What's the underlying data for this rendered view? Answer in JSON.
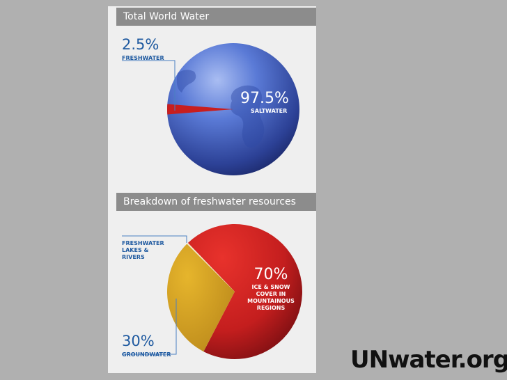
{
  "colors": {
    "background": "#b0b0b0",
    "panel": "#efefef",
    "header": "#8c8c8c",
    "blue_text": "#1f5aa0",
    "ocean_light": "#7c9ae8",
    "ocean_dark": "#1b2a6e",
    "freshwater_red": "#c81e1e",
    "ice_red": "#c41e1e",
    "ice_red_dark": "#6e0c10",
    "groundwater_gold": "#d4a322"
  },
  "brand": {
    "text": "UNwater.org"
  },
  "chart_data": [
    {
      "type": "pie",
      "title": "Total World Water",
      "slices": [
        {
          "label": "SALTWATER",
          "value": 97.5,
          "display": "97.5%",
          "color": "#3553b4"
        },
        {
          "label": "FRESHWATER",
          "value": 2.5,
          "display": "2.5%",
          "color": "#c81e1e"
        }
      ]
    },
    {
      "type": "pie",
      "title": "Breakdown of freshwater resources",
      "slices": [
        {
          "label": "ICE & SNOW COVER IN MOUNTAINOUS REGIONS",
          "label_lines": [
            "ICE & SNOW",
            "COVER IN",
            "MOUNTAINOUS",
            "REGIONS"
          ],
          "value": 70,
          "display": "70%",
          "color": "#c41e1e"
        },
        {
          "label": "GROUNDWATER",
          "label_lines": [
            "GROUNDWATER"
          ],
          "value": 30,
          "display": "30%",
          "color": "#d4a322"
        },
        {
          "label": "FRESHWATER LAKES & RIVERS",
          "label_lines": [
            "FRESHWATER",
            "LAKES &",
            "RIVERS"
          ],
          "value": 0.3,
          "display": "0.3%",
          "color": "#f2e9c8"
        }
      ]
    }
  ]
}
